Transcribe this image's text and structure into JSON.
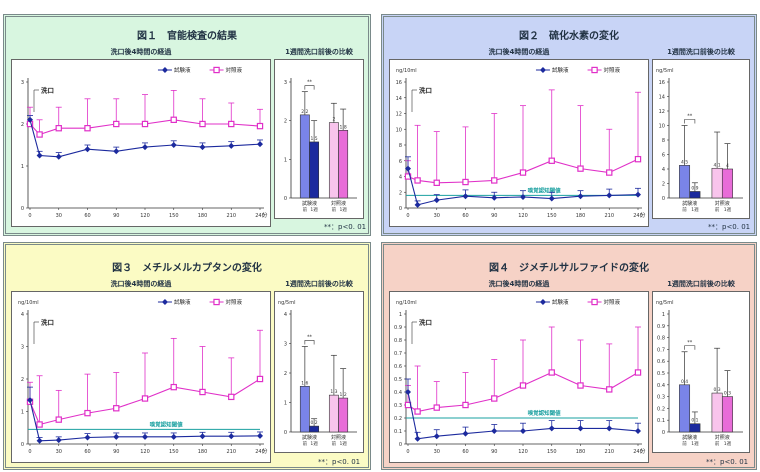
{
  "common": {
    "line_subtitle": "洗口後4時間の経過",
    "bar_subtitle": "1週間洗口前後の比較",
    "legend": [
      "試験液",
      "対照液"
    ],
    "time_unit": "分",
    "wash_label": "洗口",
    "threshold_label": "嗅覚認知閾値",
    "sig_marker": "**",
    "bar_groups": [
      "試験液",
      "対照液"
    ],
    "bar_sublabels": [
      "前",
      "1週"
    ],
    "footnote": "**：p<0. 01",
    "colors": {
      "test": "#1c2a9e",
      "control": "#e030c8",
      "threshold": "#1aa0a0",
      "bar_test_pre": "#7a84e8",
      "bar_test_post": "#1c2a9e",
      "bar_ctrl_pre": "#f8c4ec",
      "bar_ctrl_post": "#e86cd8"
    }
  },
  "chart_data": [
    {
      "id": "fig1",
      "title": "図１　官能検査の結果",
      "bg": "#d8f6e0",
      "type": "line",
      "x": [
        0,
        10,
        30,
        60,
        90,
        120,
        150,
        180,
        210,
        240
      ],
      "xticks": [
        0,
        30,
        60,
        90,
        120,
        150,
        180,
        210,
        240
      ],
      "ylim": [
        0,
        3
      ],
      "yticks": [
        0,
        1,
        2,
        3
      ],
      "ylabel": "",
      "threshold": null,
      "series": [
        {
          "name": "試験液",
          "values": [
            2.1,
            1.25,
            1.22,
            1.4,
            1.35,
            1.45,
            1.5,
            1.45,
            1.48,
            1.52
          ],
          "err": [
            0.1,
            0.1,
            0.1,
            0.1,
            0.1,
            0.1,
            0.1,
            0.1,
            0.1,
            0.1
          ]
        },
        {
          "name": "対照液",
          "values": [
            2.0,
            1.75,
            1.9,
            1.9,
            2.0,
            2.0,
            2.1,
            2.0,
            2.0,
            1.95
          ],
          "err": [
            0.4,
            0.35,
            0.5,
            0.7,
            0.6,
            0.7,
            0.7,
            0.6,
            0.5,
            0.4
          ]
        }
      ],
      "bars": {
        "ylim": [
          0,
          3
        ],
        "yticks": [
          0,
          1,
          2,
          3
        ],
        "ylabel": "",
        "values": [
          2.15,
          1.45,
          1.95,
          1.75
        ],
        "err": [
          0.6,
          0.55,
          0.5,
          0.55
        ]
      }
    },
    {
      "id": "fig2",
      "title": "図２　硫化水素の変化",
      "bg": "#c8d4f6",
      "type": "line",
      "x": [
        0,
        10,
        30,
        60,
        90,
        120,
        150,
        180,
        210,
        240
      ],
      "xticks": [
        0,
        30,
        60,
        90,
        120,
        150,
        180,
        210,
        240
      ],
      "ylim": [
        0,
        16
      ],
      "yticks": [
        0,
        2,
        4,
        6,
        8,
        10,
        12,
        14,
        16
      ],
      "ylabel": "ng/10ml",
      "threshold": 1.6,
      "series": [
        {
          "name": "試験液",
          "values": [
            5.0,
            0.4,
            1.0,
            1.5,
            1.3,
            1.4,
            1.2,
            1.5,
            1.6,
            1.7
          ],
          "err": [
            1.5,
            0.5,
            0.7,
            0.8,
            0.7,
            0.8,
            0.8,
            0.7,
            0.8,
            0.8
          ]
        },
        {
          "name": "対照液",
          "values": [
            4.0,
            3.5,
            3.2,
            3.3,
            3.5,
            4.5,
            6.0,
            5.0,
            4.5,
            6.2
          ],
          "err": [
            2.0,
            7.0,
            6.5,
            7.0,
            8.5,
            8.5,
            9.0,
            8.0,
            5.5,
            8.5
          ]
        }
      ],
      "bars": {
        "ylim": [
          0,
          16
        ],
        "yticks": [
          0,
          2,
          4,
          6,
          8,
          10,
          12,
          14,
          16
        ],
        "ylabel": "ng/5ml",
        "values": [
          4.5,
          0.9,
          4.1,
          4.0
        ],
        "err": [
          5.5,
          1.2,
          5.0,
          3.5
        ]
      }
    },
    {
      "id": "fig3",
      "title": "図３　メチルメルカプタンの変化",
      "bg": "#fbfbc4",
      "type": "line",
      "x": [
        0,
        10,
        30,
        60,
        90,
        120,
        150,
        180,
        210,
        240
      ],
      "xticks": [
        0,
        30,
        60,
        90,
        120,
        150,
        180,
        210,
        240
      ],
      "ylim": [
        0,
        4
      ],
      "yticks": [
        0,
        1,
        2,
        3,
        4
      ],
      "ylabel": "ng/10ml",
      "threshold": 0.45,
      "series": [
        {
          "name": "試験液",
          "values": [
            1.35,
            0.1,
            0.12,
            0.2,
            0.22,
            0.22,
            0.22,
            0.24,
            0.24,
            0.25
          ],
          "err": [
            0.4,
            0.1,
            0.1,
            0.12,
            0.12,
            0.12,
            0.12,
            0.12,
            0.12,
            0.12
          ]
        },
        {
          "name": "対照液",
          "values": [
            1.3,
            0.6,
            0.75,
            0.95,
            1.1,
            1.4,
            1.75,
            1.6,
            1.45,
            2.0
          ],
          "err": [
            0.6,
            1.5,
            0.9,
            1.2,
            1.1,
            1.4,
            1.5,
            1.4,
            1.2,
            1.5
          ]
        }
      ],
      "bars": {
        "ylim": [
          0,
          4
        ],
        "yticks": [
          0,
          1,
          2,
          3,
          4
        ],
        "ylabel": "ng/5ml",
        "values": [
          1.55,
          0.2,
          1.25,
          1.15
        ],
        "err": [
          1.35,
          0.25,
          1.35,
          1.0
        ]
      }
    },
    {
      "id": "fig4",
      "title": "図４　ジメチルサルファイドの変化",
      "bg": "#f6d2c6",
      "type": "line",
      "x": [
        0,
        10,
        30,
        60,
        90,
        120,
        150,
        180,
        210,
        240
      ],
      "xticks": [
        0,
        30,
        60,
        90,
        120,
        150,
        180,
        210,
        240
      ],
      "ylim": [
        0,
        1.0
      ],
      "yticks": [
        0,
        0.1,
        0.2,
        0.3,
        0.4,
        0.5,
        0.6,
        0.7,
        0.8,
        0.9,
        1.0
      ],
      "ylabel": "ng/10ml",
      "threshold": 0.2,
      "series": [
        {
          "name": "試験液",
          "values": [
            0.4,
            0.04,
            0.06,
            0.08,
            0.1,
            0.1,
            0.12,
            0.12,
            0.12,
            0.1
          ],
          "err": [
            0.1,
            0.05,
            0.05,
            0.05,
            0.05,
            0.06,
            0.06,
            0.06,
            0.06,
            0.06
          ]
        },
        {
          "name": "対照液",
          "values": [
            0.3,
            0.25,
            0.28,
            0.3,
            0.35,
            0.45,
            0.55,
            0.45,
            0.42,
            0.55
          ],
          "err": [
            0.15,
            0.35,
            0.2,
            0.25,
            0.3,
            0.35,
            0.35,
            0.35,
            0.35,
            0.35
          ]
        }
      ],
      "bars": {
        "ylim": [
          0,
          1.0
        ],
        "yticks": [
          0,
          0.1,
          0.2,
          0.3,
          0.4,
          0.5,
          0.6,
          0.7,
          0.8,
          0.9,
          1.0
        ],
        "ylabel": "ng/5ml",
        "values": [
          0.4,
          0.07,
          0.33,
          0.3
        ],
        "err": [
          0.28,
          0.1,
          0.38,
          0.22
        ]
      }
    }
  ]
}
